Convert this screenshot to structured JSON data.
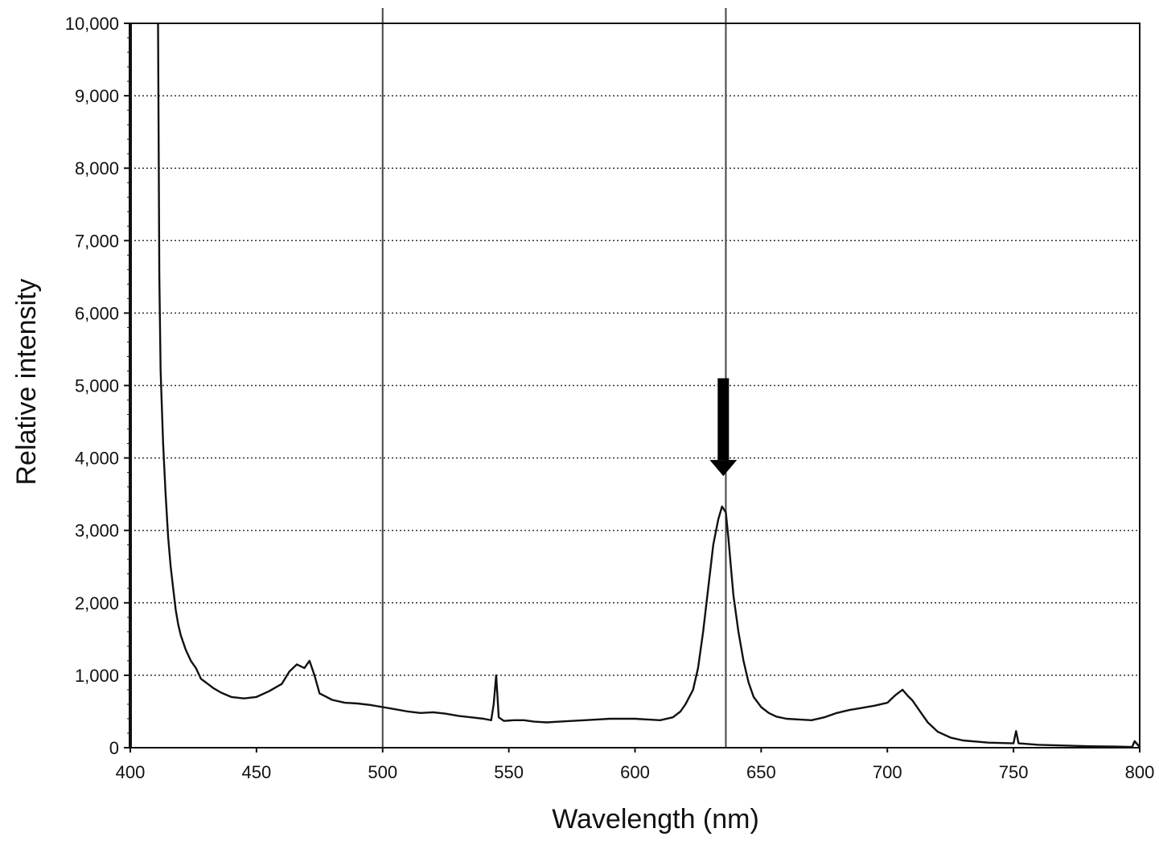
{
  "chart_data": {
    "type": "line",
    "title": "",
    "xlabel": "Wavelength (nm)",
    "ylabel": "Relative intensity",
    "xlim": [
      400,
      800
    ],
    "ylim": [
      0,
      10000
    ],
    "x_ticks": [
      400,
      450,
      500,
      550,
      600,
      650,
      700,
      750,
      800
    ],
    "x_tick_labels": [
      "400",
      "450",
      "500",
      "550",
      "600",
      "650",
      "700",
      "750",
      "800"
    ],
    "y_ticks": [
      0,
      1000,
      2000,
      3000,
      4000,
      5000,
      6000,
      7000,
      8000,
      9000,
      10000
    ],
    "y_tick_labels": [
      "0",
      "1,000",
      "2,000",
      "3,000",
      "4,000",
      "5,000",
      "6,000",
      "7,000",
      "8,000",
      "9,000",
      "10,000"
    ],
    "grid": {
      "horizontal": true,
      "style": "dotted"
    },
    "vertical_reference_lines": [
      500,
      636
    ],
    "annotation": {
      "type": "arrow-down",
      "x": 635,
      "y_top": 5100,
      "y_tip": 3750
    },
    "line_color": "#111111",
    "series": [
      {
        "values": [
          [
            411,
            10000
          ],
          [
            411.5,
            6500
          ],
          [
            412,
            5200
          ],
          [
            413,
            4200
          ],
          [
            414,
            3500
          ],
          [
            415,
            2900
          ],
          [
            416,
            2500
          ],
          [
            417,
            2200
          ],
          [
            418,
            1900
          ],
          [
            419,
            1700
          ],
          [
            420,
            1550
          ],
          [
            422,
            1350
          ],
          [
            424,
            1200
          ],
          [
            426,
            1100
          ],
          [
            428,
            950
          ],
          [
            430,
            900
          ],
          [
            433,
            820
          ],
          [
            436,
            760
          ],
          [
            440,
            700
          ],
          [
            445,
            680
          ],
          [
            450,
            700
          ],
          [
            455,
            780
          ],
          [
            460,
            880
          ],
          [
            463,
            1050
          ],
          [
            466,
            1150
          ],
          [
            469,
            1100
          ],
          [
            471,
            1200
          ],
          [
            473,
            1000
          ],
          [
            475,
            750
          ],
          [
            480,
            660
          ],
          [
            485,
            620
          ],
          [
            490,
            610
          ],
          [
            495,
            590
          ],
          [
            500,
            560
          ],
          [
            505,
            530
          ],
          [
            510,
            500
          ],
          [
            515,
            480
          ],
          [
            520,
            490
          ],
          [
            525,
            470
          ],
          [
            530,
            440
          ],
          [
            535,
            420
          ],
          [
            540,
            400
          ],
          [
            543,
            380
          ],
          [
            544,
            600
          ],
          [
            545,
            1000
          ],
          [
            546,
            420
          ],
          [
            548,
            370
          ],
          [
            552,
            380
          ],
          [
            556,
            380
          ],
          [
            560,
            360
          ],
          [
            565,
            350
          ],
          [
            570,
            360
          ],
          [
            575,
            370
          ],
          [
            580,
            380
          ],
          [
            585,
            390
          ],
          [
            590,
            400
          ],
          [
            595,
            400
          ],
          [
            600,
            400
          ],
          [
            605,
            390
          ],
          [
            610,
            380
          ],
          [
            615,
            420
          ],
          [
            618,
            500
          ],
          [
            620,
            600
          ],
          [
            623,
            800
          ],
          [
            625,
            1100
          ],
          [
            627,
            1600
          ],
          [
            629,
            2200
          ],
          [
            631,
            2800
          ],
          [
            633,
            3150
          ],
          [
            634.5,
            3330
          ],
          [
            636,
            3250
          ],
          [
            637,
            2900
          ],
          [
            638,
            2500
          ],
          [
            639,
            2100
          ],
          [
            641,
            1600
          ],
          [
            643,
            1200
          ],
          [
            645,
            900
          ],
          [
            647,
            700
          ],
          [
            650,
            560
          ],
          [
            653,
            480
          ],
          [
            656,
            430
          ],
          [
            660,
            400
          ],
          [
            665,
            390
          ],
          [
            670,
            380
          ],
          [
            675,
            420
          ],
          [
            680,
            480
          ],
          [
            685,
            520
          ],
          [
            690,
            550
          ],
          [
            695,
            580
          ],
          [
            700,
            620
          ],
          [
            703,
            720
          ],
          [
            706,
            800
          ],
          [
            708,
            720
          ],
          [
            710,
            650
          ],
          [
            713,
            500
          ],
          [
            716,
            350
          ],
          [
            720,
            220
          ],
          [
            725,
            140
          ],
          [
            730,
            100
          ],
          [
            740,
            70
          ],
          [
            750,
            60
          ],
          [
            751,
            230
          ],
          [
            752,
            60
          ],
          [
            760,
            40
          ],
          [
            770,
            30
          ],
          [
            780,
            20
          ],
          [
            790,
            15
          ],
          [
            797,
            10
          ],
          [
            798,
            90
          ],
          [
            800,
            10
          ]
        ]
      }
    ]
  }
}
